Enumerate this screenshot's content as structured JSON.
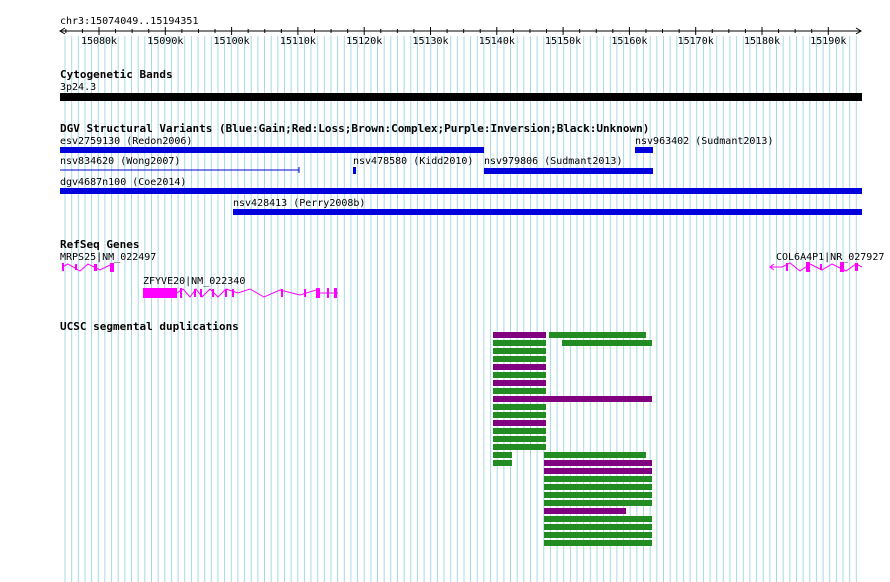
{
  "ruler": {
    "location": "chr3:15074049..15194351",
    "ticks": [
      "15080k",
      "15090k",
      "15100k",
      "15110k",
      "15120k",
      "15130k",
      "15140k",
      "15150k",
      "15160k",
      "15170k",
      "15180k",
      "15190k"
    ]
  },
  "tracks": {
    "cytoband": {
      "title": "Cytogenetic Bands",
      "band": "3p24.3"
    },
    "dgv": {
      "title": "DGV Structural Variants (Blue:Gain;Red:Loss;Brown:Complex;Purple:Inversion;Black:Unknown)",
      "features": [
        {
          "label": "esv2759130 (Redon2006)"
        },
        {
          "label": "nsv963402 (Sudmant2013)"
        },
        {
          "label": "nsv834620 (Wong2007)"
        },
        {
          "label": "nsv478580 (Kidd2010)"
        },
        {
          "label": "nsv979806 (Sudmant2013)"
        },
        {
          "label": "dgv4687n100 (Coe2014)"
        },
        {
          "label": "nsv428413 (Perry2008b)"
        }
      ]
    },
    "refseq": {
      "title": "RefSeq Genes",
      "genes": [
        {
          "label": "MRPS25|NM_022497"
        },
        {
          "label": "ZFYVE20|NM_022340"
        },
        {
          "label": "COL6A4P1|NR_027927"
        }
      ]
    },
    "segdups": {
      "title": "UCSC segmental duplications"
    }
  },
  "colors": {
    "grid": "#a8d8e8",
    "cytoband": "#000000",
    "gain": "#0000dd",
    "gene": "#ff00ff",
    "segdup_purple": "#800080",
    "segdup_green": "#228b22"
  }
}
